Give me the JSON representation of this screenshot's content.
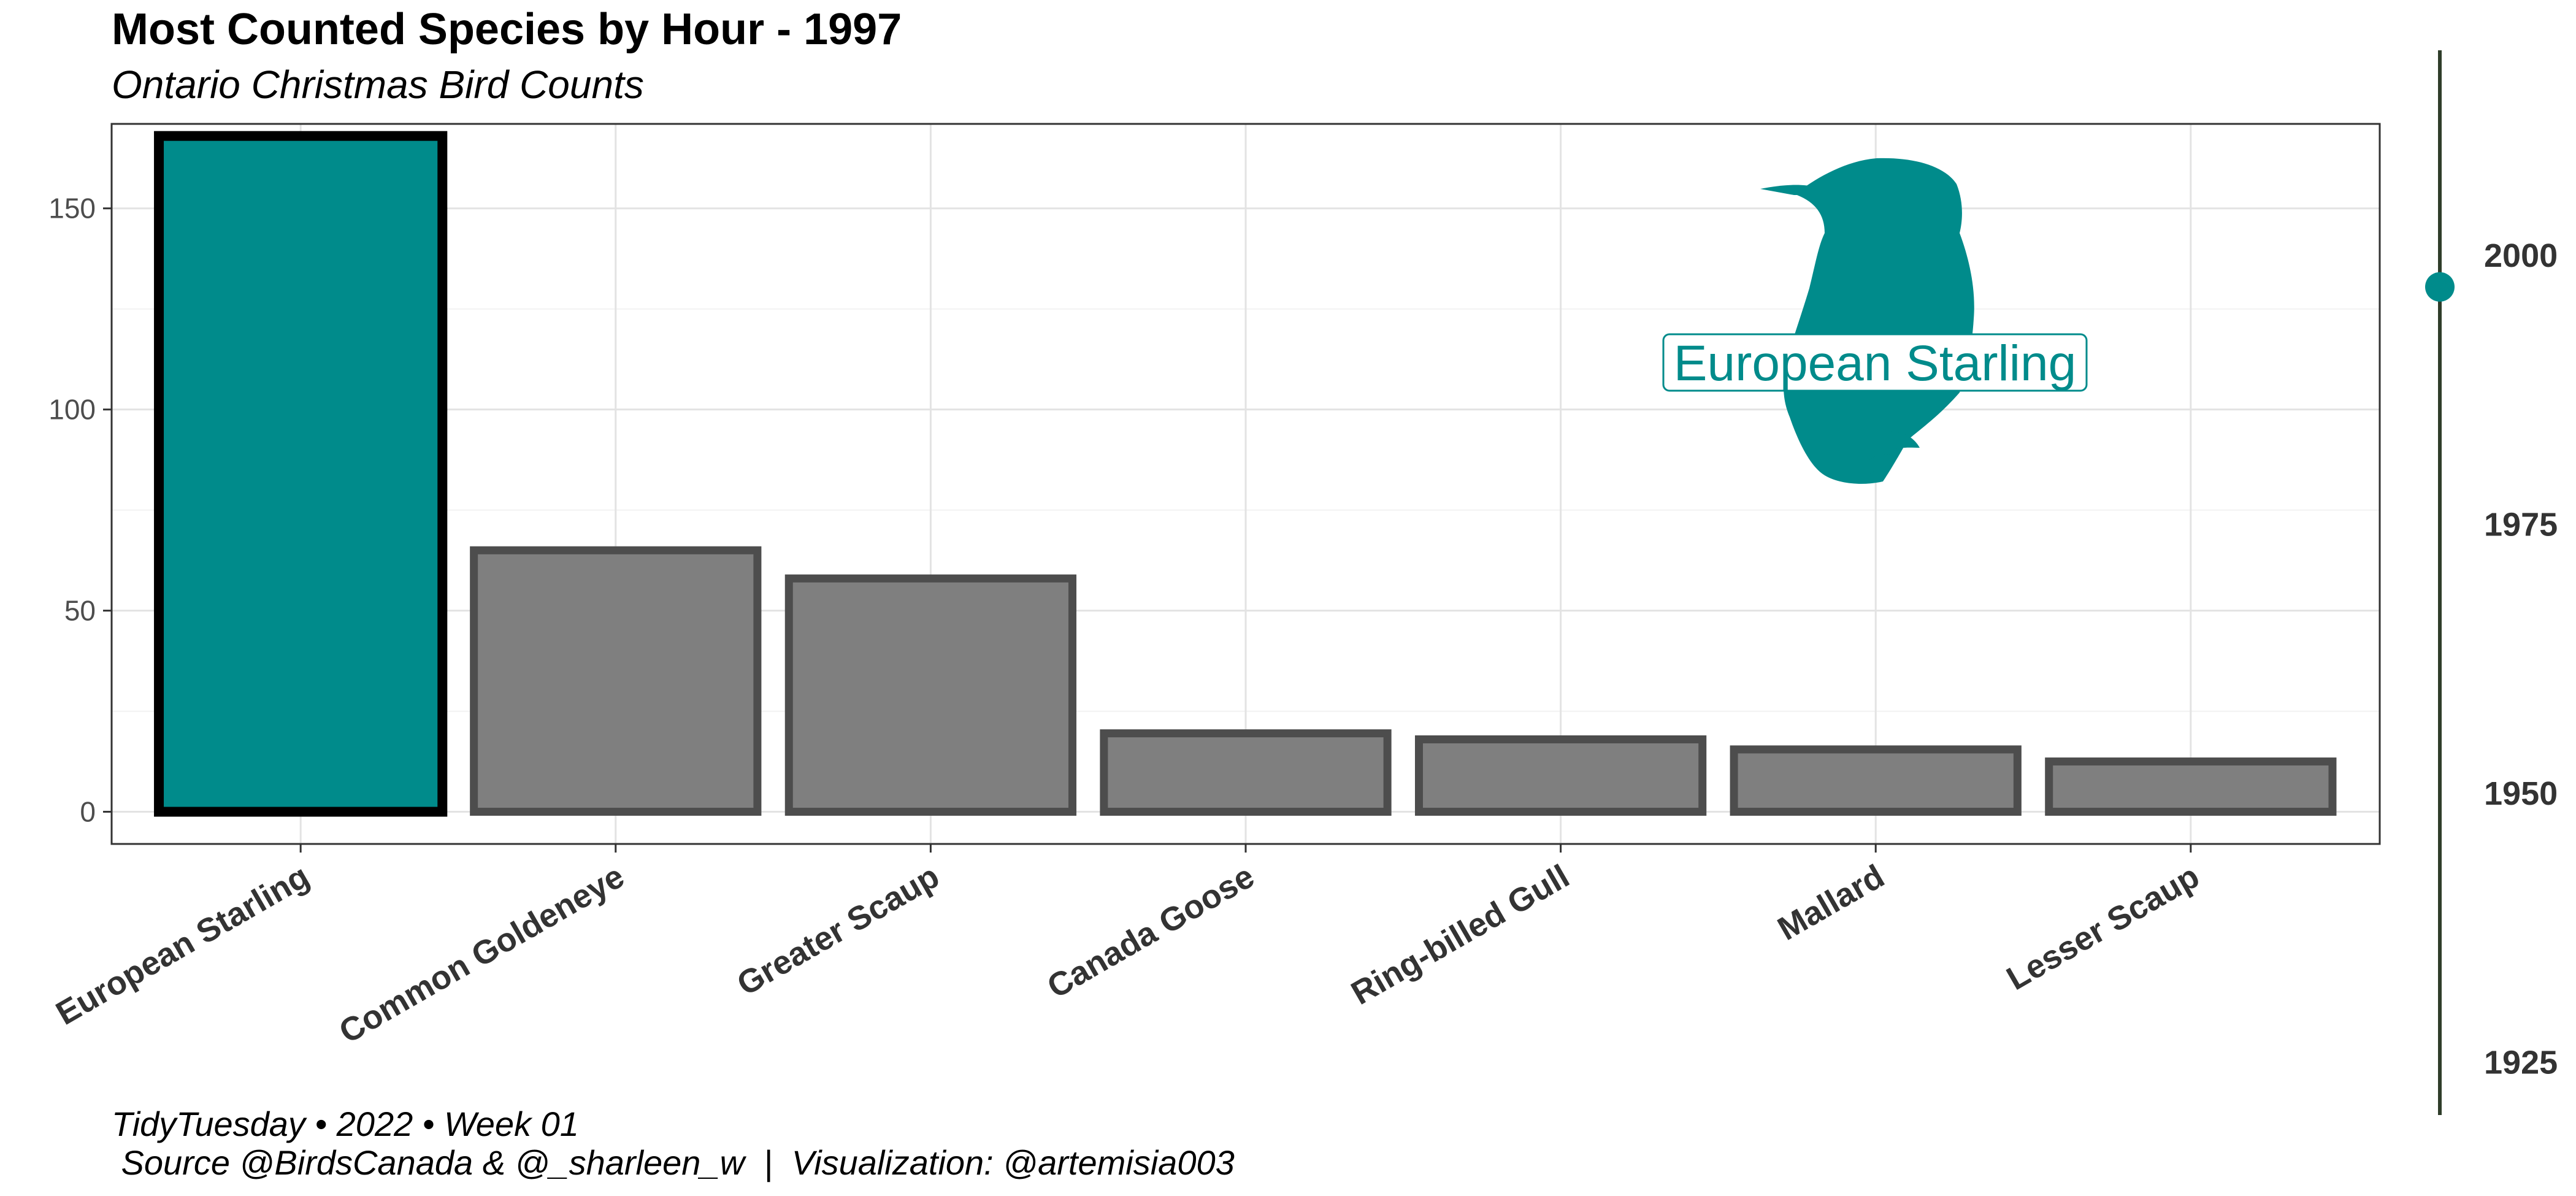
{
  "chart_data": {
    "type": "bar",
    "title": "Most Counted Species by Hour - 1997",
    "subtitle": "Ontario Christmas Bird Counts",
    "categories": [
      "European Starling",
      "Common Goldeneye",
      "Greater Scaup",
      "Canada Goose",
      "Ring-billed Gull",
      "Mallard",
      "Lesser Scaup"
    ],
    "values": [
      168,
      65,
      58,
      19.5,
      18,
      15.5,
      12.5
    ],
    "ylim": [
      -8,
      171
    ],
    "yticks": [
      0,
      50,
      100,
      150
    ],
    "grid": true,
    "highlight": {
      "category": "European Starling",
      "label": "European Starling",
      "color": "#008B8B",
      "icon": "starling-silhouette-icon"
    },
    "bar_color": "#7f7f7f",
    "bar_outline_color": "#4d4d4d",
    "timeline": {
      "ticks": [
        1925,
        1950,
        1975,
        2000
      ],
      "range": [
        1920,
        2019
      ],
      "current": 1997,
      "line_color": "#2f3d2a",
      "marker_color": "#008B8B"
    },
    "caption_lines": [
      "TidyTuesday • 2022 • Week 01",
      " Source @BirdsCanada & @_sharleen_w  |  Visualization: @artemisia003"
    ]
  }
}
